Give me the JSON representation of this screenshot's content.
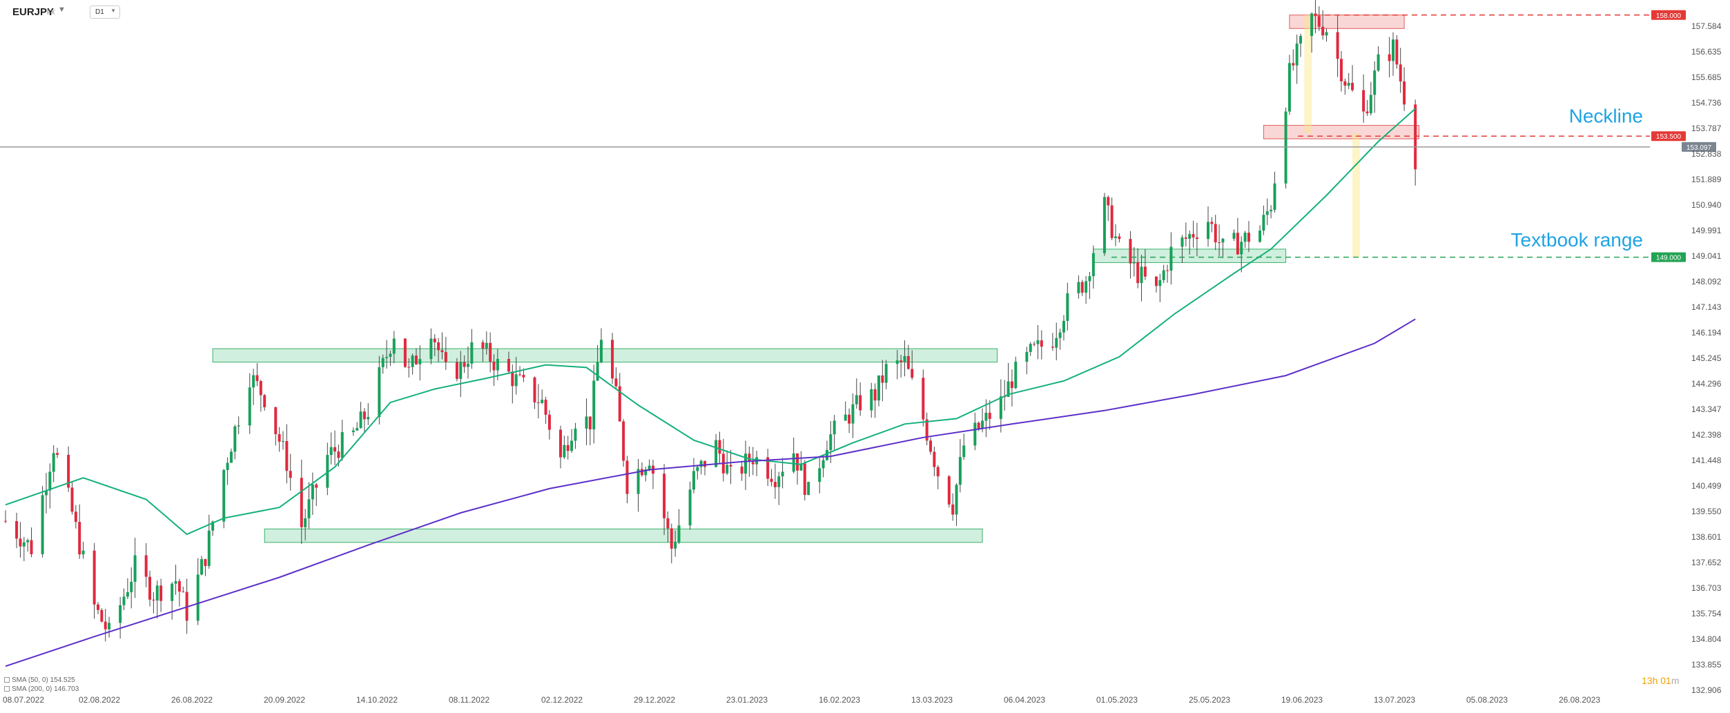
{
  "header": {
    "symbol": "EURJPY",
    "market": "FX",
    "timeframe": "D1"
  },
  "legend": {
    "sma50": "SMA (50, 0) 154.525",
    "sma200": "SMA (200, 0) 146.703"
  },
  "timer": {
    "prefix": "13h",
    "middle": " 01",
    "suffix": "m"
  },
  "chart_data": {
    "type": "candlestick",
    "y_axis": {
      "min": 132.906,
      "max": 158.2,
      "ticks": [
        "157.584",
        "156.635",
        "155.685",
        "154.736",
        "153.787",
        "152.838",
        "151.889",
        "150.940",
        "149.991",
        "149.041",
        "148.092",
        "147.143",
        "146.194",
        "145.245",
        "144.296",
        "143.347",
        "142.398",
        "141.448",
        "140.499",
        "139.550",
        "138.601",
        "137.652",
        "136.703",
        "135.754",
        "134.804",
        "133.855",
        "132.906"
      ]
    },
    "x_axis": {
      "first_date": "08.07.2022",
      "labels": [
        "08.07.2022",
        "02.08.2022",
        "26.08.2022",
        "20.09.2022",
        "14.10.2022",
        "08.11.2022",
        "02.12.2022",
        "29.12.2022",
        "23.01.2023",
        "16.02.2023",
        "13.03.2023",
        "06.04.2023",
        "01.05.2023",
        "25.05.2023",
        "19.06.2023",
        "13.07.2023",
        "05.08.2023",
        "26.08.2023"
      ]
    },
    "price_marks": [
      {
        "value": 158.0,
        "label": "158.000",
        "color": "#e53935"
      },
      {
        "value": 153.5,
        "label": "153.500",
        "color": "#e53935"
      },
      {
        "value": 149.0,
        "label": "149.000",
        "color": "#23a454"
      },
      {
        "value": 153.097,
        "label": "153.097",
        "color": "#7b8591"
      }
    ],
    "annotations": [
      {
        "text": "Neckline",
        "price": 154.0,
        "color": "#1ea3e4"
      },
      {
        "text": "Textbook range",
        "price": 149.4,
        "color": "#1ea3e4"
      }
    ],
    "zones": [
      {
        "from": "2022-09-02",
        "to": "2023-04-02",
        "low": 145.1,
        "high": 145.6,
        "color": "green"
      },
      {
        "from": "2022-09-16",
        "to": "2023-03-29",
        "low": 138.4,
        "high": 138.9,
        "color": "green"
      },
      {
        "from": "2023-04-28",
        "to": "2023-06-19",
        "low": 148.8,
        "high": 149.3,
        "color": "green"
      },
      {
        "from": "2023-06-20",
        "to": "2023-07-21",
        "low": 157.5,
        "high": 158.0,
        "color": "red"
      },
      {
        "from": "2023-06-13",
        "to": "2023-07-25",
        "low": 153.4,
        "high": 153.9,
        "color": "red"
      },
      {
        "from": "2023-06-24",
        "to": "2023-06-26",
        "low": 153.6,
        "high": 158.0,
        "color": "yellow"
      },
      {
        "from": "2023-07-07",
        "to": "2023-07-09",
        "low": 149.0,
        "high": 153.6,
        "color": "yellow"
      }
    ],
    "sma50": [
      [
        "2022-07-08",
        139.8
      ],
      [
        "2022-07-29",
        140.8
      ],
      [
        "2022-08-15",
        140.0
      ],
      [
        "2022-08-26",
        138.7
      ],
      [
        "2022-09-05",
        139.3
      ],
      [
        "2022-09-20",
        139.7
      ],
      [
        "2022-10-05",
        141.2
      ],
      [
        "2022-10-20",
        143.6
      ],
      [
        "2022-11-01",
        144.1
      ],
      [
        "2022-11-15",
        144.5
      ],
      [
        "2022-12-01",
        145.0
      ],
      [
        "2022-12-12",
        144.9
      ],
      [
        "2022-12-26",
        143.5
      ],
      [
        "2023-01-10",
        142.2
      ],
      [
        "2023-01-25",
        141.5
      ],
      [
        "2023-02-08",
        141.3
      ],
      [
        "2023-02-22",
        142.1
      ],
      [
        "2023-03-08",
        142.8
      ],
      [
        "2023-03-22",
        143.0
      ],
      [
        "2023-04-05",
        143.9
      ],
      [
        "2023-04-20",
        144.4
      ],
      [
        "2023-05-05",
        145.3
      ],
      [
        "2023-05-20",
        146.9
      ],
      [
        "2023-06-05",
        148.4
      ],
      [
        "2023-06-15",
        149.3
      ],
      [
        "2023-06-30",
        151.3
      ],
      [
        "2023-07-14",
        153.3
      ],
      [
        "2023-07-24",
        154.52
      ]
    ],
    "sma200": [
      [
        "2022-07-08",
        133.8
      ],
      [
        "2022-08-01",
        134.9
      ],
      [
        "2022-08-26",
        136.0
      ],
      [
        "2022-09-20",
        137.1
      ],
      [
        "2022-10-14",
        138.3
      ],
      [
        "2022-11-08",
        139.5
      ],
      [
        "2022-12-02",
        140.4
      ],
      [
        "2022-12-29",
        141.1
      ],
      [
        "2023-01-23",
        141.4
      ],
      [
        "2023-02-16",
        141.6
      ],
      [
        "2023-03-13",
        142.3
      ],
      [
        "2023-04-06",
        142.8
      ],
      [
        "2023-05-01",
        143.3
      ],
      [
        "2023-05-25",
        143.9
      ],
      [
        "2023-06-19",
        144.6
      ],
      [
        "2023-07-13",
        145.8
      ],
      [
        "2023-07-24",
        146.7
      ]
    ],
    "ohlc_path": [
      [
        "2022-07-08",
        139.2
      ],
      [
        "2022-07-15",
        138.2
      ],
      [
        "2022-07-21",
        142.0
      ],
      [
        "2022-07-26",
        139.5
      ],
      [
        "2022-08-01",
        136.0
      ],
      [
        "2022-08-05",
        135.0
      ],
      [
        "2022-08-12",
        137.5
      ],
      [
        "2022-08-17",
        136.5
      ],
      [
        "2022-08-23",
        137.0
      ],
      [
        "2022-08-26",
        135.8
      ],
      [
        "2022-08-31",
        137.9
      ],
      [
        "2022-09-05",
        141.1
      ],
      [
        "2022-09-12",
        144.6
      ],
      [
        "2022-09-16",
        143.8
      ],
      [
        "2022-09-22",
        141.4
      ],
      [
        "2022-09-26",
        139.0
      ],
      [
        "2022-10-03",
        141.6
      ],
      [
        "2022-10-10",
        142.4
      ],
      [
        "2022-10-14",
        143.3
      ],
      [
        "2022-10-21",
        146.2
      ],
      [
        "2022-10-25",
        144.7
      ],
      [
        "2022-10-31",
        146.4
      ],
      [
        "2022-11-04",
        144.7
      ],
      [
        "2022-11-08",
        144.9
      ],
      [
        "2022-11-12",
        145.8
      ],
      [
        "2022-11-18",
        145.0
      ],
      [
        "2022-11-24",
        144.3
      ],
      [
        "2022-11-30",
        143.6
      ],
      [
        "2022-12-05",
        141.5
      ],
      [
        "2022-12-09",
        143.0
      ],
      [
        "2022-12-13",
        142.9
      ],
      [
        "2022-12-16",
        146.1
      ],
      [
        "2022-12-20",
        143.8
      ],
      [
        "2022-12-23",
        140.6
      ],
      [
        "2022-12-29",
        141.6
      ],
      [
        "2023-01-04",
        138.2
      ],
      [
        "2023-01-10",
        140.8
      ],
      [
        "2023-01-16",
        142.0
      ],
      [
        "2023-01-20",
        140.8
      ],
      [
        "2023-01-26",
        141.6
      ],
      [
        "2023-02-01",
        140.9
      ],
      [
        "2023-02-06",
        141.8
      ],
      [
        "2023-02-10",
        140.2
      ],
      [
        "2023-02-15",
        142.2
      ],
      [
        "2023-02-20",
        143.0
      ],
      [
        "2023-02-24",
        143.6
      ],
      [
        "2023-02-28",
        143.9
      ],
      [
        "2023-03-03",
        144.8
      ],
      [
        "2023-03-08",
        145.1
      ],
      [
        "2023-03-13",
        143.0
      ],
      [
        "2023-03-17",
        141.0
      ],
      [
        "2023-03-21",
        139.8
      ],
      [
        "2023-03-24",
        142.0
      ],
      [
        "2023-03-29",
        142.8
      ],
      [
        "2023-04-03",
        143.6
      ],
      [
        "2023-04-06",
        144.5
      ],
      [
        "2023-04-11",
        145.4
      ],
      [
        "2023-04-17",
        146.0
      ],
      [
        "2023-04-21",
        147.3
      ],
      [
        "2023-04-26",
        148.2
      ],
      [
        "2023-05-01",
        150.9
      ],
      [
        "2023-05-05",
        149.3
      ],
      [
        "2023-05-10",
        148.4
      ],
      [
        "2023-05-15",
        147.7
      ],
      [
        "2023-05-19",
        149.2
      ],
      [
        "2023-05-24",
        149.8
      ],
      [
        "2023-05-29",
        150.4
      ],
      [
        "2023-06-02",
        149.3
      ],
      [
        "2023-06-07",
        149.6
      ],
      [
        "2023-06-12",
        150.0
      ],
      [
        "2023-06-15",
        151.0
      ],
      [
        "2023-06-20",
        155.8
      ],
      [
        "2023-06-26",
        157.9
      ],
      [
        "2023-06-30",
        157.5
      ],
      [
        "2023-07-05",
        155.6
      ],
      [
        "2023-07-10",
        154.3
      ],
      [
        "2023-07-14",
        156.2
      ],
      [
        "2023-07-18",
        156.8
      ],
      [
        "2023-07-21",
        155.0
      ],
      [
        "2023-07-24",
        152.7
      ]
    ]
  }
}
